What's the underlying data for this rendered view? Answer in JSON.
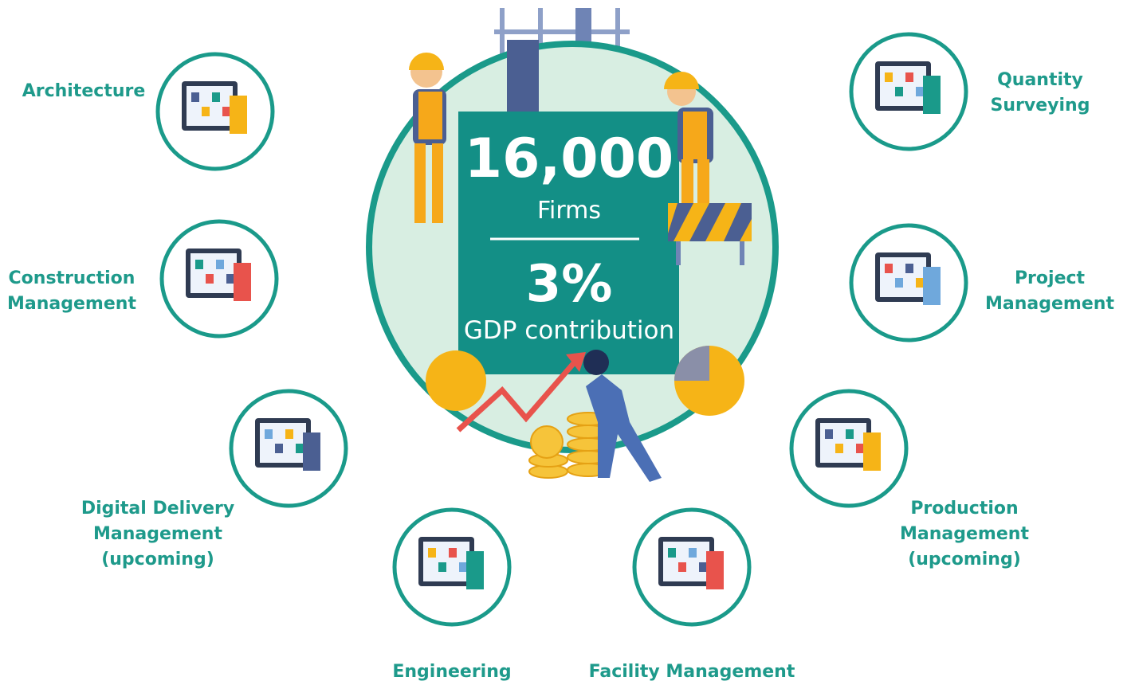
{
  "center": {
    "stat1": "16,000",
    "stat1_label": "Firms",
    "stat2": "3%",
    "stat2_label": "GDP contribution"
  },
  "nodes": [
    {
      "label": [
        "Architecture"
      ]
    },
    {
      "label": [
        "Quantity",
        "Surveying"
      ]
    },
    {
      "label": [
        "Construction",
        "Management"
      ]
    },
    {
      "label": [
        "Project",
        "Management"
      ]
    },
    {
      "label": [
        "Digital Delivery",
        "Management",
        "(upcoming)"
      ]
    },
    {
      "label": [
        "Production",
        "Management",
        "(upcoming)"
      ]
    },
    {
      "label": [
        "Engineering"
      ]
    },
    {
      "label": [
        "Facility Management"
      ]
    }
  ]
}
